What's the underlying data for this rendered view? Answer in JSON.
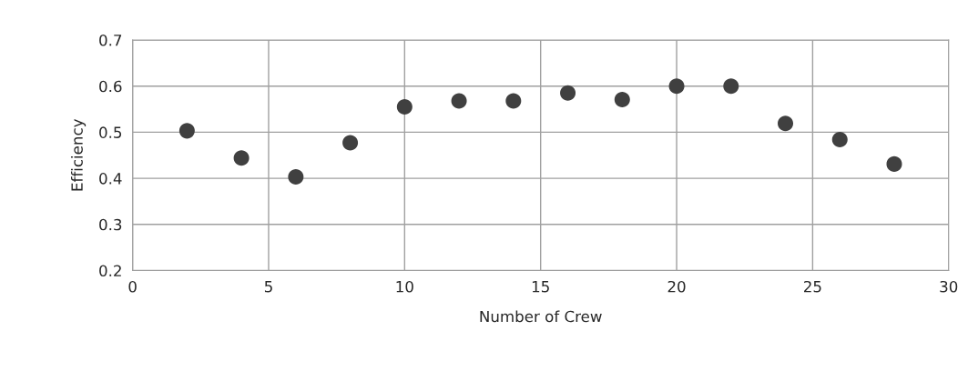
{
  "chart_data": {
    "type": "scatter",
    "xlabel": "Number of Crew",
    "ylabel": "Efficiency",
    "x": [
      2,
      4,
      6,
      8,
      10,
      12,
      14,
      16,
      18,
      20,
      22,
      24,
      26,
      28
    ],
    "series": [
      {
        "color": "#404040",
        "values": [
          0.503,
          0.444,
          0.403,
          0.477,
          0.555,
          0.568,
          0.568,
          0.585,
          0.571,
          0.6,
          0.6,
          0.519,
          0.484,
          0.431
        ]
      }
    ],
    "xlim": [
      0,
      30
    ],
    "xticks": [
      0,
      5,
      10,
      15,
      20,
      25,
      30
    ],
    "ylim": [
      0.2,
      0.7
    ],
    "yticks": [
      0.2,
      0.3,
      0.4,
      0.5,
      0.6,
      0.7
    ],
    "grid": true,
    "marker": "circle"
  }
}
